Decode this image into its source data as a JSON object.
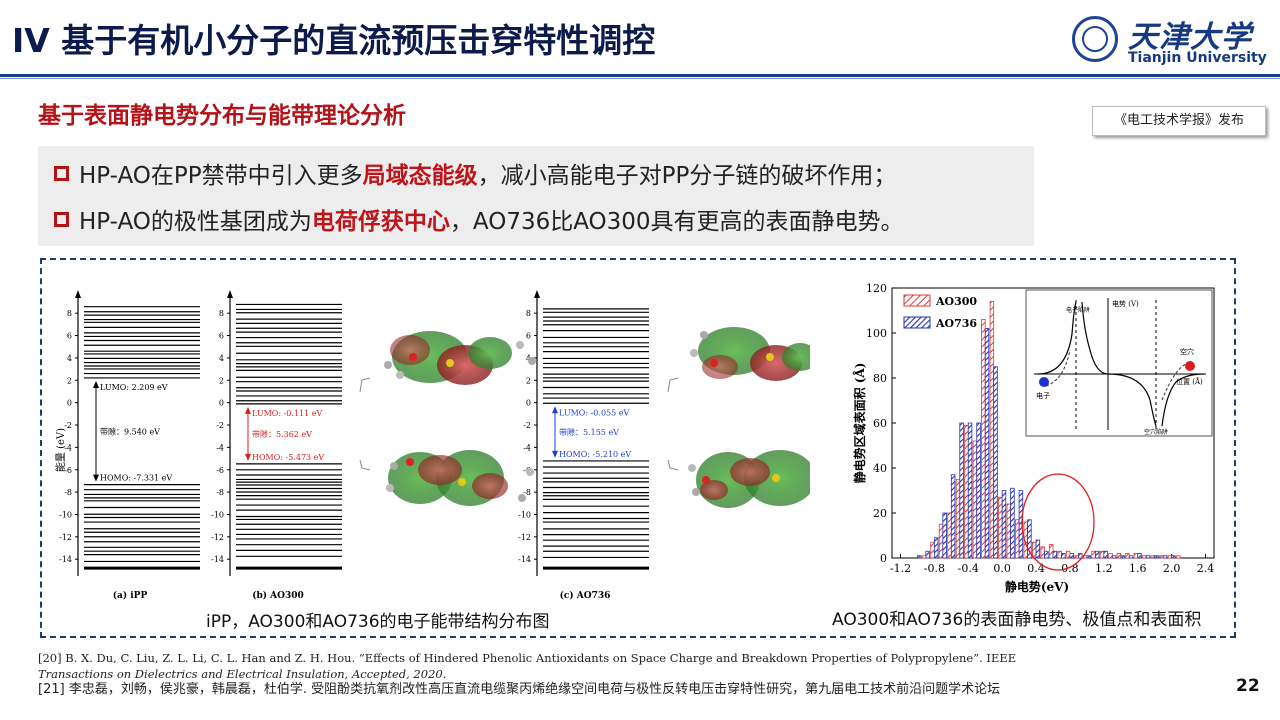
{
  "header": {
    "title": "IV 基于有机小分子的直流预压击穿特性调控",
    "logo": {
      "cn": "天津大学",
      "en": "Tianjin University"
    }
  },
  "subheading": "基于表面静电势分布与能带理论分析",
  "journal_tag": "《电工技术学报》发布",
  "bullets": [
    {
      "pre": "HP-AO在PP禁带中引入更多",
      "highlight": "局域态能级",
      "post": "，减小高能电子对PP分子链的破坏作用；"
    },
    {
      "pre": "HP-AO的极性基团成为",
      "highlight": "电荷俘获中心",
      "post": "，AO736比AO300具有更高的表面静电势。"
    }
  ],
  "energy_figure": {
    "ylabel": "能量 (eV)",
    "yticks": [
      "8",
      "6",
      "4",
      "2",
      "0",
      "-2",
      "-4",
      "-6",
      "-8",
      "-10",
      "-12",
      "-14"
    ],
    "panels": [
      {
        "label": "(a) iPP",
        "lumo": "LUMO: 2.209 eV",
        "gap": "带隙：9.540 eV",
        "homo": "HOMO: -7.331 eV"
      },
      {
        "label": "(b) AO300",
        "lumo": "LUMO: -0.111 eV",
        "gap": "带隙：5.362 eV",
        "homo": "HOMO: -5.473 eV"
      },
      {
        "label": "(c) AO736",
        "lumo": "LUMO: -0.055 eV",
        "gap": "带隙：5.155 eV",
        "homo": "HOMO: -5.210 eV"
      }
    ],
    "caption": "iPP，AO300和AO736的电子能带结构分布图",
    "colors": {
      "ipp": "#000000",
      "ao300": "#e01b1b",
      "ao736": "#1c3fd6"
    }
  },
  "chart_data": {
    "type": "bar",
    "xlabel": "静电势(eV)",
    "ylabel": "静电势区域表面积 (Å)",
    "ylim": [
      0,
      120
    ],
    "xlim": [
      -1.3,
      2.5
    ],
    "xticks": [
      "-1.2",
      "-0.8",
      "-0.4",
      "0.0",
      "0.4",
      "0.8",
      "1.2",
      "1.6",
      "2.0",
      "2.4"
    ],
    "yticks": [
      "0",
      "20",
      "40",
      "60",
      "80",
      "100",
      "120"
    ],
    "legend_position": "top-left",
    "categories": [
      "-1.1",
      "-1.0",
      "-0.9",
      "-0.8",
      "-0.7",
      "-0.6",
      "-0.5",
      "-0.4",
      "-0.3",
      "-0.2",
      "-0.1",
      "0.0",
      "0.1",
      "0.2",
      "0.3",
      "0.4",
      "0.5",
      "0.6",
      "0.7",
      "0.8",
      "0.9",
      "1.0",
      "1.1",
      "1.2",
      "1.3",
      "1.4",
      "1.5",
      "1.6",
      "1.7",
      "1.8",
      "1.9",
      "2.0",
      "2.1",
      "2.2"
    ],
    "series": [
      {
        "name": "AO300",
        "color": "#e0393b",
        "pattern": "diagonal-red",
        "values": [
          0,
          0,
          1,
          7,
          15,
          20,
          35,
          59,
          52,
          106,
          114,
          27,
          24,
          17,
          16,
          7,
          5,
          6,
          3,
          3,
          1,
          1,
          3,
          3,
          2,
          2,
          2,
          2,
          1,
          1,
          1,
          1,
          1,
          0
        ]
      },
      {
        "name": "AO736",
        "color": "#2433b3",
        "pattern": "diagonal-blue",
        "values": [
          0,
          1,
          3,
          9,
          20,
          37,
          60,
          60,
          60,
          102,
          85,
          30,
          31,
          30,
          17,
          8,
          3,
          3,
          2,
          2,
          2,
          1,
          3,
          3,
          1,
          1,
          1,
          2,
          1,
          1,
          1,
          1,
          0,
          0
        ]
      }
    ],
    "inset": {
      "ylabel": "电势 (V)",
      "xlabel": "位置 (Å)",
      "labels": [
        "电子",
        "空穴",
        "电子陷阱",
        "空穴陷阱"
      ]
    },
    "caption": "AO300和AO736的表面静电势、极值点和表面积"
  },
  "references": [
    "[20] B. X. Du, C. Liu, Z. L. Li, C. L. Han and Z. H. Hou. “Effects of Hindered Phenolic Antioxidants on Space Charge and Breakdown Properties of Polypropylene”. IEEE",
    "Transactions on Dielectrics and Electrical Insulation, Accepted, 2020.",
    "[21] 李忠磊，刘畅，侯兆豪，韩晨磊，杜伯学. 受阻酚类抗氧剂改性高压直流电缆聚丙烯绝缘空间电荷与极性反转电压击穿特性研究，第九届电工技术前沿问题学术论坛"
  ],
  "page_number": "22"
}
